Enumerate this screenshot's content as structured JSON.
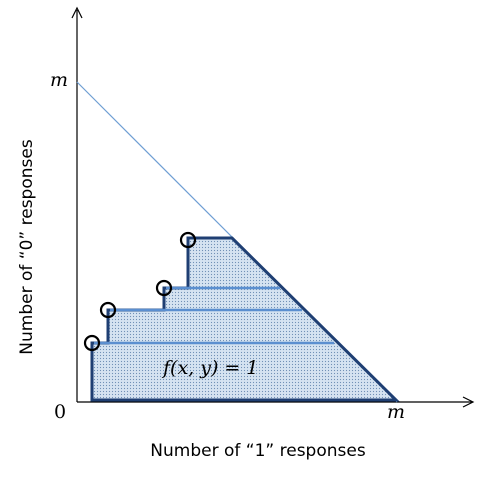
{
  "axes": {
    "x_label": "Number of “1” responses",
    "y_label": "Number of “0” responses",
    "origin_label": "0",
    "x_max_label": "m",
    "y_max_label": "m"
  },
  "region": {
    "formula": "f(x, y) = 1"
  },
  "colors": {
    "region_fill": "#c6d8ea",
    "region_border": "#1f3f73",
    "diagonal": "#6f9fd3",
    "inner_lines": "#5b8fd0",
    "marker": "#000000"
  }
}
